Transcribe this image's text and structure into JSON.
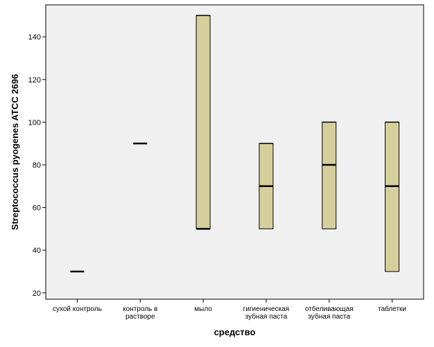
{
  "chart_data": {
    "type": "boxplot",
    "xlabel": "средство",
    "ylabel": "Streptococcus pyogenes ATCC 2696",
    "ylim": [
      17,
      155
    ],
    "yticks": [
      20,
      40,
      60,
      80,
      100,
      120,
      140
    ],
    "grid": false,
    "colors": {
      "box_fill": "#d5cf9c",
      "plot_bg": "#f0f0f0",
      "stroke": "#000000"
    },
    "categories": [
      {
        "lines": [
          "сухой контроль"
        ],
        "min": 30,
        "q1": 30,
        "median": 30,
        "q3": 30,
        "max": 30
      },
      {
        "lines": [
          "контроль в",
          "растворе"
        ],
        "min": 90,
        "q1": 90,
        "median": 90,
        "q3": 90,
        "max": 90
      },
      {
        "lines": [
          "мыло"
        ],
        "min": 50,
        "q1": 50,
        "median": 50,
        "q3": 150,
        "max": 150
      },
      {
        "lines": [
          "гигиеническая",
          "зубная паста"
        ],
        "min": 50,
        "q1": 50,
        "median": 70,
        "q3": 90,
        "max": 90
      },
      {
        "lines": [
          "отбеливающая",
          "зубная паста"
        ],
        "min": 50,
        "q1": 50,
        "median": 80,
        "q3": 100,
        "max": 100
      },
      {
        "lines": [
          "таблетки"
        ],
        "min": 30,
        "q1": 30,
        "median": 70,
        "q3": 100,
        "max": 100
      }
    ]
  }
}
